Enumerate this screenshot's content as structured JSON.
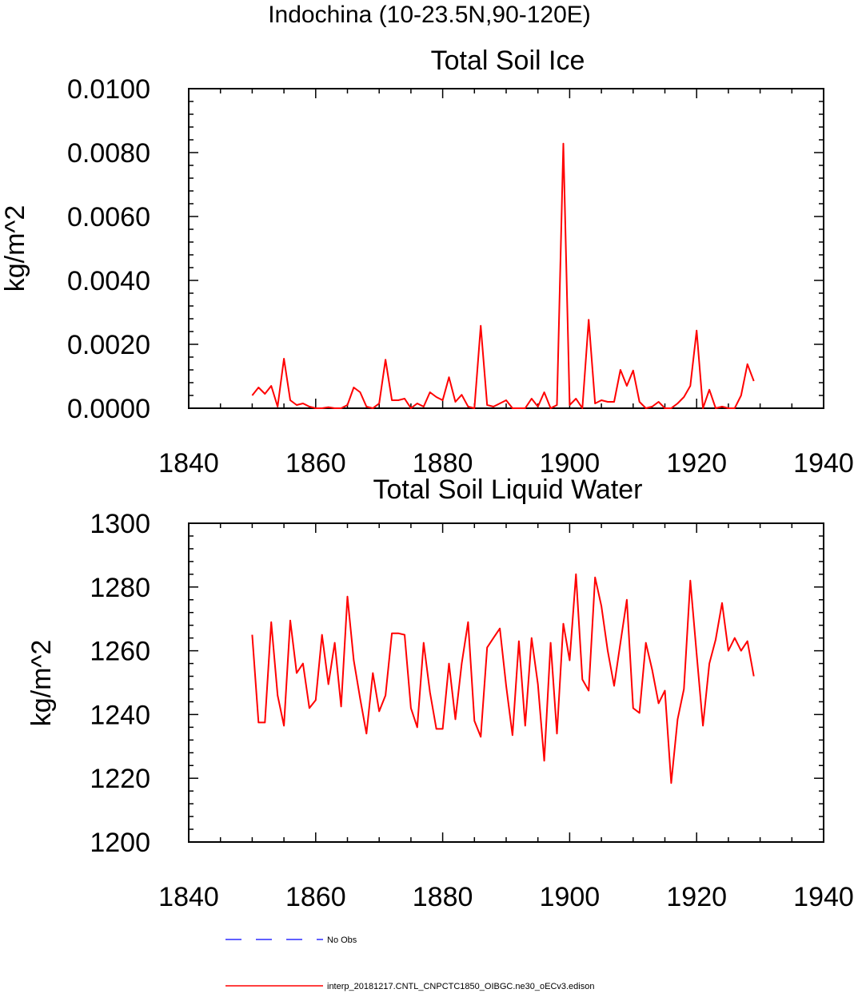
{
  "figure": {
    "suptitle": "Indochina (10-23.5N,90-120E)"
  },
  "chart_data": [
    {
      "type": "line",
      "title": "Total Soil Ice",
      "xlabel": "",
      "ylabel": "kg/m^2",
      "xlim": [
        1840,
        1940
      ],
      "ylim": [
        0.0,
        0.01
      ],
      "xticks": [
        1840,
        1860,
        1880,
        1900,
        1920,
        1940
      ],
      "xtick_labels": [
        "1840",
        "1860",
        "1880",
        "1900",
        "1920",
        "1940"
      ],
      "yticks": [
        0.0,
        0.002,
        0.004,
        0.006,
        0.008,
        0.01
      ],
      "ytick_labels": [
        "0.0000",
        "0.0020",
        "0.0040",
        "0.0060",
        "0.0080",
        "0.0100"
      ],
      "grid": false,
      "series": [
        {
          "name": "interp_20181217.CNTL_CNPCTC1850_OIBGC.ne30_oECv3.edison",
          "color": "#ff0000",
          "x": [
            1850,
            1851,
            1852,
            1853,
            1854,
            1855,
            1856,
            1857,
            1858,
            1859,
            1860,
            1861,
            1862,
            1863,
            1864,
            1865,
            1866,
            1867,
            1868,
            1869,
            1870,
            1871,
            1872,
            1873,
            1874,
            1875,
            1876,
            1877,
            1878,
            1879,
            1880,
            1881,
            1882,
            1883,
            1884,
            1885,
            1886,
            1887,
            1888,
            1889,
            1890,
            1891,
            1892,
            1893,
            1894,
            1895,
            1896,
            1897,
            1898,
            1899,
            1900,
            1901,
            1902,
            1903,
            1904,
            1905,
            1906,
            1907,
            1908,
            1909,
            1910,
            1911,
            1912,
            1913,
            1914,
            1915,
            1916,
            1917,
            1918,
            1919,
            1920,
            1921,
            1922,
            1923,
            1924,
            1925,
            1926,
            1927,
            1928,
            1929
          ],
          "values": [
            0.0004,
            0.00065,
            0.00045,
            0.0007,
            5e-05,
            0.00155,
            0.00025,
            0.0001,
            0.00015,
            5e-05,
            0.0,
            0.0,
            3e-05,
            0.0,
            0.0,
            0.0001,
            0.00065,
            0.0005,
            5e-05,
            0.0,
            0.00015,
            0.00152,
            0.00025,
            0.00025,
            0.0003,
            0.0,
            0.00015,
            5e-05,
            0.0005,
            0.00035,
            0.00025,
            0.00097,
            0.0002,
            0.00042,
            5e-05,
            0.0,
            0.00258,
            0.0001,
            5e-05,
            0.00015,
            0.00025,
            0.0,
            0.0,
            0.0,
            0.0003,
            5e-05,
            0.0005,
            0.0,
            0.0001,
            0.00828,
            0.0001,
            0.0003,
            0.0,
            0.00277,
            0.00015,
            0.00025,
            0.0002,
            0.0002,
            0.0012,
            0.0007,
            0.00118,
            0.0002,
            0.0,
            5e-05,
            0.0002,
            0.0,
            0.0,
            0.00015,
            0.00035,
            0.0007,
            0.00243,
            0.0,
            0.00058,
            0.0,
            5e-05,
            0.0,
            0.0,
            0.0004,
            0.00138,
            0.00085
          ]
        }
      ]
    },
    {
      "type": "line",
      "title": "Total Soil Liquid Water",
      "xlabel": "",
      "ylabel": "kg/m^2",
      "xlim": [
        1840,
        1940
      ],
      "ylim": [
        1200,
        1300
      ],
      "xticks": [
        1840,
        1860,
        1880,
        1900,
        1920,
        1940
      ],
      "xtick_labels": [
        "1840",
        "1860",
        "1880",
        "1900",
        "1920",
        "1940"
      ],
      "yticks": [
        1200,
        1220,
        1240,
        1260,
        1280,
        1300
      ],
      "ytick_labels": [
        "1200",
        "1220",
        "1240",
        "1260",
        "1280",
        "1300"
      ],
      "grid": false,
      "series": [
        {
          "name": "interp_20181217.CNTL_CNPCTC1850_OIBGC.ne30_oECv3.edison",
          "color": "#ff0000",
          "x": [
            1850,
            1851,
            1852,
            1853,
            1854,
            1855,
            1856,
            1857,
            1858,
            1859,
            1860,
            1861,
            1862,
            1863,
            1864,
            1865,
            1866,
            1867,
            1868,
            1869,
            1870,
            1871,
            1872,
            1873,
            1874,
            1875,
            1876,
            1877,
            1878,
            1879,
            1880,
            1881,
            1882,
            1883,
            1884,
            1885,
            1886,
            1887,
            1888,
            1889,
            1890,
            1891,
            1892,
            1893,
            1894,
            1895,
            1896,
            1897,
            1898,
            1899,
            1900,
            1901,
            1902,
            1903,
            1904,
            1905,
            1906,
            1907,
            1908,
            1909,
            1910,
            1911,
            1912,
            1913,
            1914,
            1915,
            1916,
            1917,
            1918,
            1919,
            1920,
            1921,
            1922,
            1923,
            1924,
            1925,
            1926,
            1927,
            1928,
            1929
          ],
          "values": [
            1265,
            1237.5,
            1237.5,
            1269,
            1246,
            1236.5,
            1269.5,
            1253,
            1256,
            1242,
            1244.5,
            1265,
            1249.5,
            1262.5,
            1242.5,
            1277,
            1257,
            1245,
            1234,
            1253,
            1241,
            1246,
            1265.5,
            1265.5,
            1265,
            1242,
            1236,
            1262.5,
            1247,
            1235.5,
            1235.5,
            1256,
            1238.5,
            1256,
            1269,
            1238,
            1233,
            1261,
            1264,
            1267,
            1249,
            1233.5,
            1263,
            1236.5,
            1264,
            1249.5,
            1225.5,
            1262.5,
            1234,
            1268.5,
            1257,
            1284,
            1251,
            1247.5,
            1283,
            1274,
            1260,
            1249,
            1262.5,
            1276,
            1242,
            1240.5,
            1262.5,
            1254,
            1243.5,
            1247.5,
            1218.5,
            1238.5,
            1248,
            1282,
            1259,
            1236.5,
            1256,
            1263.5,
            1275,
            1260,
            1264,
            1260,
            1263,
            1252
          ]
        }
      ]
    }
  ],
  "legend": {
    "entries": [
      {
        "label": "No Obs",
        "color": "#0000ff",
        "style": "dashed"
      },
      {
        "label": "interp_20181217.CNTL_CNPCTC1850_OIBGC.ne30_oECv3.edison",
        "color": "#ff0000",
        "style": "solid"
      }
    ]
  }
}
